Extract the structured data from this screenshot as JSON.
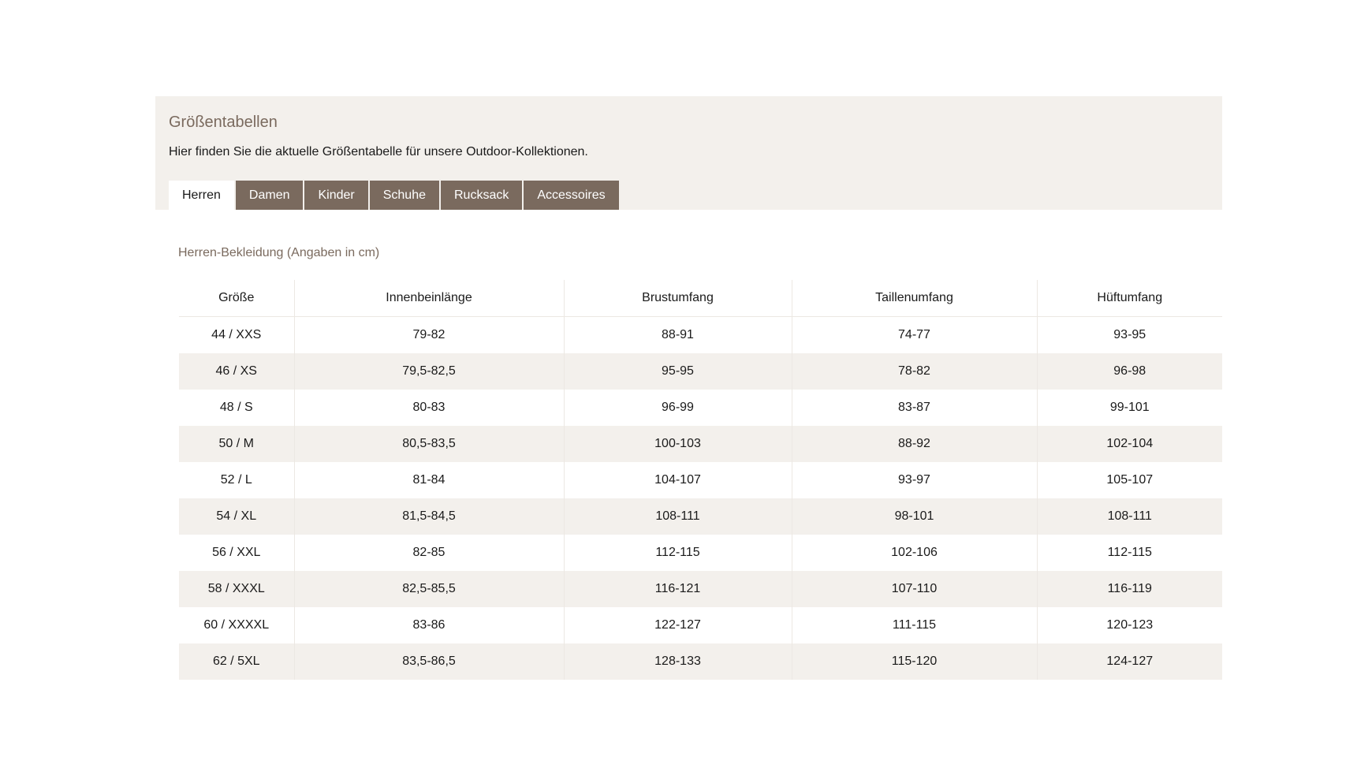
{
  "panel": {
    "title": "Größentabellen",
    "description": "Hier finden Sie die aktuelle Größentabelle für unsere Outdoor-Kollektionen."
  },
  "tabs": [
    {
      "label": "Herren",
      "active": true
    },
    {
      "label": "Damen",
      "active": false
    },
    {
      "label": "Kinder",
      "active": false
    },
    {
      "label": "Schuhe",
      "active": false
    },
    {
      "label": "Rucksack",
      "active": false
    },
    {
      "label": "Accessoires",
      "active": false
    }
  ],
  "section": {
    "caption": "Herren-Bekleidung (Angaben in cm)"
  },
  "table": {
    "headers": [
      "Größe",
      "Innenbeinlänge",
      "Brustumfang",
      "Taillenumfang",
      "Hüftumfang"
    ],
    "rows": [
      [
        "44 / XXS",
        "79-82",
        "88-91",
        "74-77",
        "93-95"
      ],
      [
        "46 / XS",
        "79,5-82,5",
        "95-95",
        "78-82",
        "96-98"
      ],
      [
        "48 / S",
        "80-83",
        "96-99",
        "83-87",
        "99-101"
      ],
      [
        "50 / M",
        "80,5-83,5",
        "100-103",
        "88-92",
        "102-104"
      ],
      [
        "52 / L",
        "81-84",
        "104-107",
        "93-97",
        "105-107"
      ],
      [
        "54 / XL",
        "81,5-84,5",
        "108-111",
        "98-101",
        "108-111"
      ],
      [
        "56 / XXL",
        "82-85",
        "112-115",
        "102-106",
        "112-115"
      ],
      [
        "58 / XXXL",
        "82,5-85,5",
        "116-121",
        "107-110",
        "116-119"
      ],
      [
        "60 / XXXXL",
        "83-86",
        "122-127",
        "111-115",
        "120-123"
      ],
      [
        "62 / 5XL",
        "83,5-86,5",
        "128-133",
        "115-120",
        "124-127"
      ]
    ]
  },
  "colors": {
    "accent": "#7a6a5e",
    "panel_bg": "#f3f0ec",
    "stripe_bg": "#f3f0ec"
  }
}
